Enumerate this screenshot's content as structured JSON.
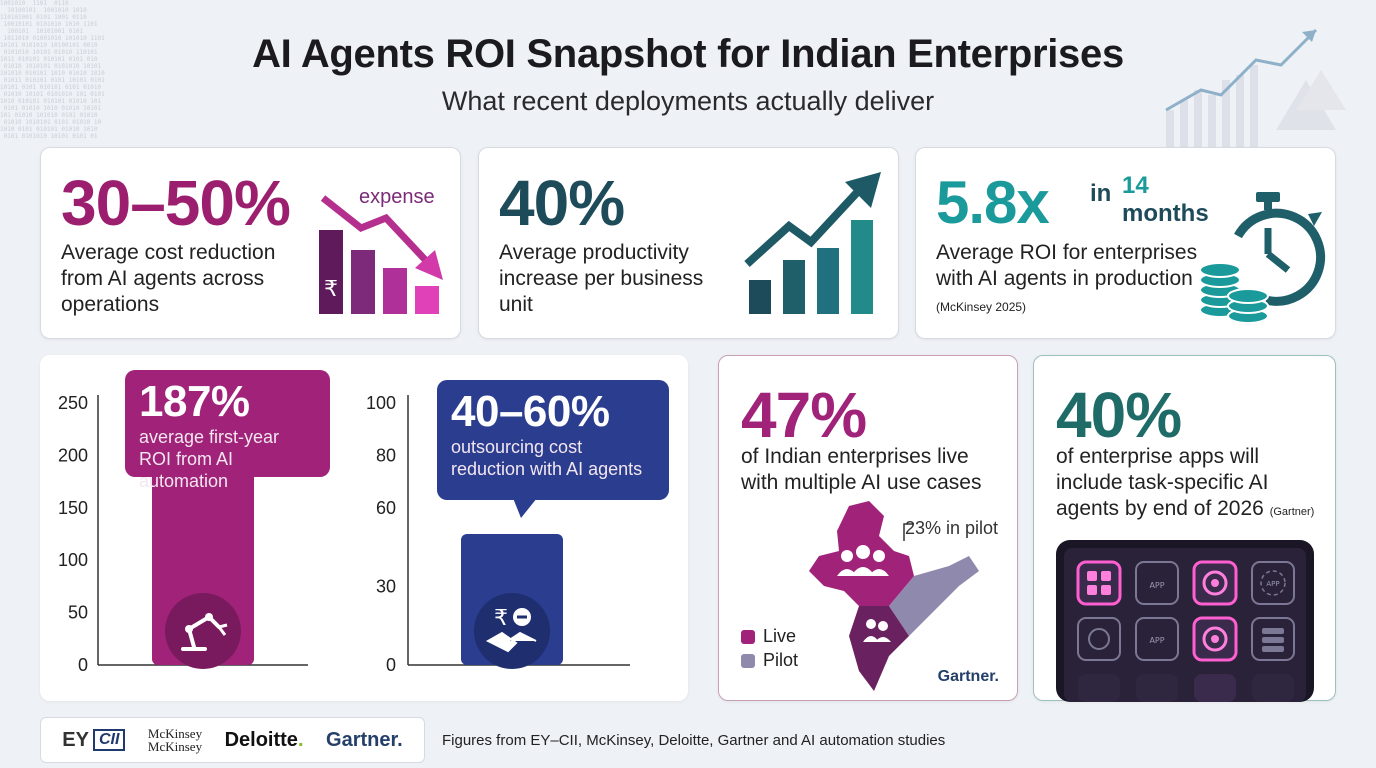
{
  "title": "AI Agents ROI Snapshot for Indian Enterprises",
  "subtitle": "What recent deployments actually deliver",
  "cards": {
    "cost": {
      "value": "30–50%",
      "description": "Average cost reduction from AI agents across operations",
      "icon_label": "expense",
      "icon": "falling-bar-chart-rupee-icon",
      "color": "#9b1f6e"
    },
    "productivity": {
      "value": "40%",
      "description": "Average productivity increase per business unit",
      "icon": "rising-bar-chart-icon",
      "color": "#1e4b5a"
    },
    "roi": {
      "value": "5.8x",
      "in": "in",
      "months_num": "14",
      "months_word": "months",
      "description": "Average ROI for enterprises with AI agents in production",
      "source": "(McKinsey 2025)",
      "icon": "stopwatch-coins-icon",
      "color": "#1a9a9a"
    },
    "india": {
      "value": "47%",
      "description": "of Indian enterprises live with multiple AI use cases",
      "pilot_label": "23% in pilot",
      "legend": [
        "Live",
        "Pilot"
      ],
      "legend_colors": [
        "#a02279",
        "#8e89ad"
      ],
      "source_logo": "Gartner.",
      "icon": "india-map-icon"
    },
    "apps": {
      "value": "40%",
      "description": "of enterprise apps will include task-specific AI agents by end of 2026",
      "source": "(Gartner)",
      "app_labels": [
        "APP",
        "APP",
        "APP"
      ],
      "icon": "tablet-app-grid-icon"
    }
  },
  "chart_data": [
    {
      "type": "bar",
      "categories": [
        ""
      ],
      "values": [
        187
      ],
      "ylim": [
        0,
        250
      ],
      "yticks": [
        0,
        50,
        100,
        150,
        200,
        250
      ],
      "callout": {
        "value": "187%",
        "text": "average first-year ROI from AI automation"
      },
      "color": "#a02279",
      "icon": "robot-arm-icon"
    },
    {
      "type": "bar",
      "categories": [
        ""
      ],
      "values": [
        50
      ],
      "ylim": [
        0,
        100
      ],
      "yticks": [
        0,
        30,
        60,
        80,
        100
      ],
      "callout": {
        "value": "40–60%",
        "text": "outsourcing cost reduction with AI agents"
      },
      "color": "#2a3d8f",
      "icon": "handshake-rupee-icon"
    }
  ],
  "footer": {
    "logos": {
      "ey": "EY",
      "cii": "CII",
      "mckinsey": "McKinsey",
      "deloitte": "Deloitte",
      "deloitte_dot": ".",
      "gartner": "Gartner."
    },
    "text": "Figures from EY–CII, McKinsey, Deloitte, Gartner and AI automation studies"
  }
}
